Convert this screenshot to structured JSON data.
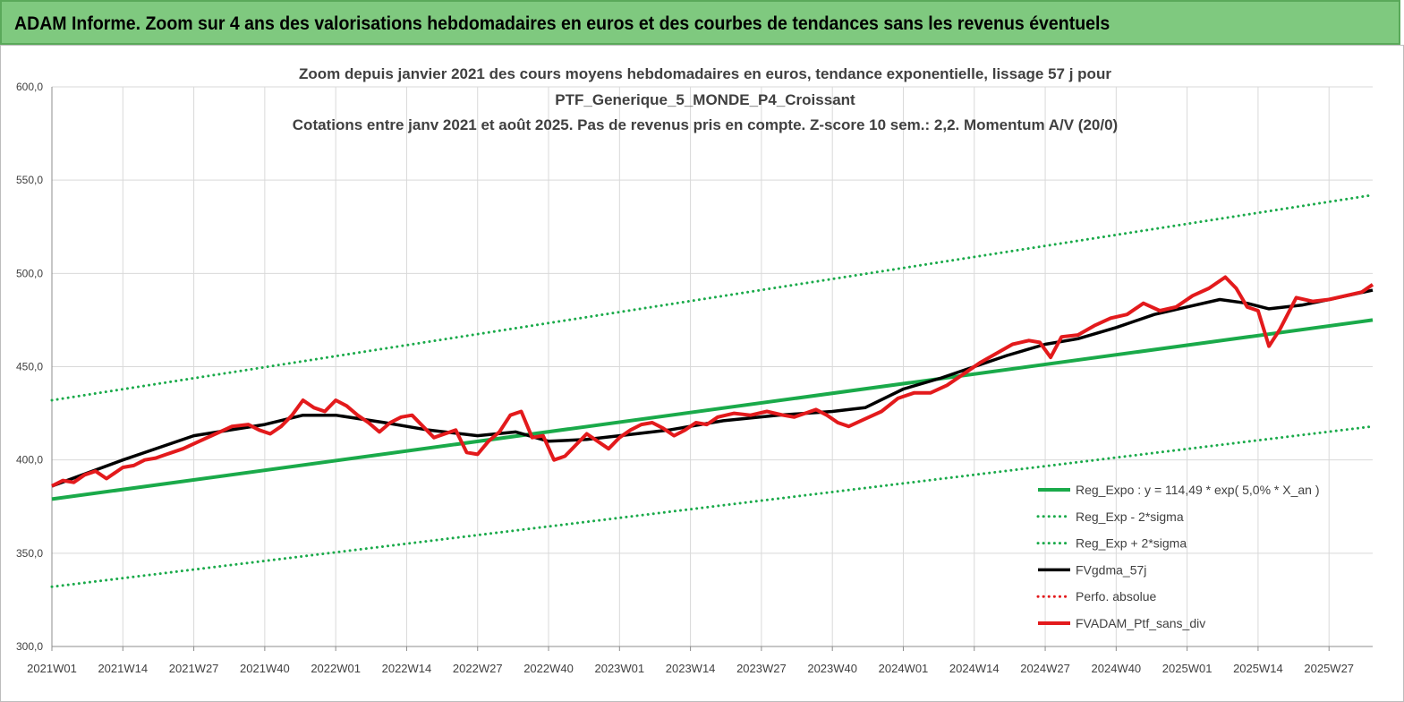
{
  "banner": {
    "title": "ADAM Informe. Zoom sur 4 ans des valorisations hebdomadaires en euros et des courbes de tendances sans les revenus éventuels",
    "color": "#7fc97f"
  },
  "chart_data": {
    "type": "line",
    "title": "Zoom depuis janvier 2021 des cours moyens hebdomadaires  en euros, tendance exponentielle, lissage 57 j pour",
    "subtitle": "PTF_Generique_5_MONDE_P4_Croissant",
    "caption": "Cotations  entre janv 2021 et août 2025. Pas de revenus pris en compte. Z-score 10 sem.: 2,2. Momentum A/V (20/0)",
    "xlabel": "",
    "ylabel": "",
    "ylim": [
      300,
      600
    ],
    "ytick_labels": [
      "300,0",
      "350,0",
      "400,0",
      "450,0",
      "500,0",
      "550,0",
      "600,0"
    ],
    "x_tick_labels": [
      "2021W01",
      "2021W14",
      "2021W27",
      "2021W40",
      "2022W01",
      "2022W14",
      "2022W27",
      "2022W40",
      "2023W01",
      "2023W14",
      "2023W27",
      "2023W40",
      "2024W01",
      "2024W14",
      "2024W27",
      "2024W40",
      "2025W01",
      "2025W14",
      "2025W27"
    ],
    "x_range": [
      "2021W01",
      "2025W35"
    ],
    "grid": true,
    "legend_position": "bottom-right",
    "series": [
      {
        "name": "Reg_Expo : y = 114,49 * exp( 5,0% *  X_an )",
        "style": "solid-thick",
        "color": "#1aaa4a",
        "x": [
          "2021W01",
          "2025W35"
        ],
        "y": [
          379,
          475
        ]
      },
      {
        "name": "Reg_Exp - 2*sigma",
        "style": "dotted",
        "color": "#1aaa4a",
        "x": [
          "2021W01",
          "2025W35"
        ],
        "y": [
          332,
          418
        ]
      },
      {
        "name": "Reg_Exp + 2*sigma",
        "style": "dotted",
        "color": "#1aaa4a",
        "x": [
          "2021W01",
          "2025W35"
        ],
        "y": [
          432,
          542
        ]
      },
      {
        "name": "FVgdma_57j",
        "style": "solid",
        "color": "#000000",
        "x": [
          "2021W01",
          "2021W14",
          "2021W27",
          "2021W40",
          "2021W47",
          "2022W01",
          "2022W10",
          "2022W18",
          "2022W27",
          "2022W34",
          "2022W40",
          "2022W47",
          "2023W01",
          "2023W10",
          "2023W20",
          "2023W30",
          "2023W40",
          "2023W46",
          "2024W01",
          "2024W08",
          "2024W14",
          "2024W20",
          "2024W27",
          "2024W33",
          "2024W40",
          "2024W47",
          "2025W01",
          "2025W07",
          "2025W12",
          "2025W16",
          "2025W22",
          "2025W27",
          "2025W35"
        ],
        "y": [
          386,
          400,
          413,
          419,
          424,
          424,
          420,
          416,
          413,
          415,
          410,
          411,
          413,
          416,
          421,
          424,
          426,
          428,
          438,
          444,
          450,
          456,
          462,
          465,
          471,
          478,
          482,
          486,
          484,
          481,
          483,
          486,
          491
        ]
      },
      {
        "name": "Perfo. absolue",
        "style": "dotted",
        "color": "#e31a1c",
        "x": [],
        "y": []
      },
      {
        "name": "FVADAM_Ptf_sans_div",
        "style": "solid-thick",
        "color": "#e31a1c",
        "x": [
          "2021W01",
          "2021W03",
          "2021W05",
          "2021W07",
          "2021W09",
          "2021W11",
          "2021W14",
          "2021W16",
          "2021W18",
          "2021W20",
          "2021W22",
          "2021W25",
          "2021W28",
          "2021W31",
          "2021W34",
          "2021W37",
          "2021W39",
          "2021W41",
          "2021W43",
          "2021W45",
          "2021W47",
          "2021W49",
          "2021W51",
          "2022W01",
          "2022W03",
          "2022W05",
          "2022W07",
          "2022W09",
          "2022W11",
          "2022W13",
          "2022W15",
          "2022W17",
          "2022W19",
          "2022W21",
          "2022W23",
          "2022W25",
          "2022W27",
          "2022W29",
          "2022W31",
          "2022W33",
          "2022W35",
          "2022W37",
          "2022W39",
          "2022W41",
          "2022W43",
          "2022W45",
          "2022W47",
          "2022W49",
          "2022W51",
          "2023W01",
          "2023W03",
          "2023W05",
          "2023W07",
          "2023W09",
          "2023W11",
          "2023W13",
          "2023W15",
          "2023W17",
          "2023W19",
          "2023W22",
          "2023W25",
          "2023W28",
          "2023W31",
          "2023W33",
          "2023W35",
          "2023W37",
          "2023W39",
          "2023W41",
          "2023W43",
          "2023W46",
          "2023W49",
          "2023W52",
          "2024W03",
          "2024W06",
          "2024W09",
          "2024W12",
          "2024W15",
          "2024W18",
          "2024W21",
          "2024W24",
          "2024W26",
          "2024W28",
          "2024W30",
          "2024W33",
          "2024W36",
          "2024W39",
          "2024W42",
          "2024W45",
          "2024W48",
          "2024W51",
          "2025W02",
          "2025W05",
          "2025W08",
          "2025W10",
          "2025W12",
          "2025W14",
          "2025W16",
          "2025W18",
          "2025W21",
          "2025W24",
          "2025W27",
          "2025W30",
          "2025W33",
          "2025W35"
        ],
        "y": [
          386,
          389,
          388,
          392,
          394,
          390,
          396,
          397,
          400,
          401,
          403,
          406,
          410,
          414,
          418,
          419,
          416,
          414,
          418,
          424,
          432,
          428,
          426,
          432,
          429,
          424,
          420,
          415,
          420,
          423,
          424,
          418,
          412,
          414,
          416,
          404,
          403,
          410,
          415,
          424,
          426,
          412,
          413,
          400,
          402,
          408,
          414,
          410,
          406,
          412,
          416,
          419,
          420,
          417,
          413,
          416,
          420,
          419,
          423,
          425,
          424,
          426,
          424,
          423,
          425,
          427,
          424,
          420,
          418,
          422,
          426,
          433,
          436,
          436,
          440,
          446,
          452,
          457,
          462,
          464,
          463,
          455,
          466,
          467,
          472,
          476,
          478,
          484,
          480,
          482,
          488,
          492,
          498,
          492,
          482,
          480,
          461,
          470,
          487,
          485,
          486,
          488,
          490,
          494
        ]
      }
    ]
  }
}
